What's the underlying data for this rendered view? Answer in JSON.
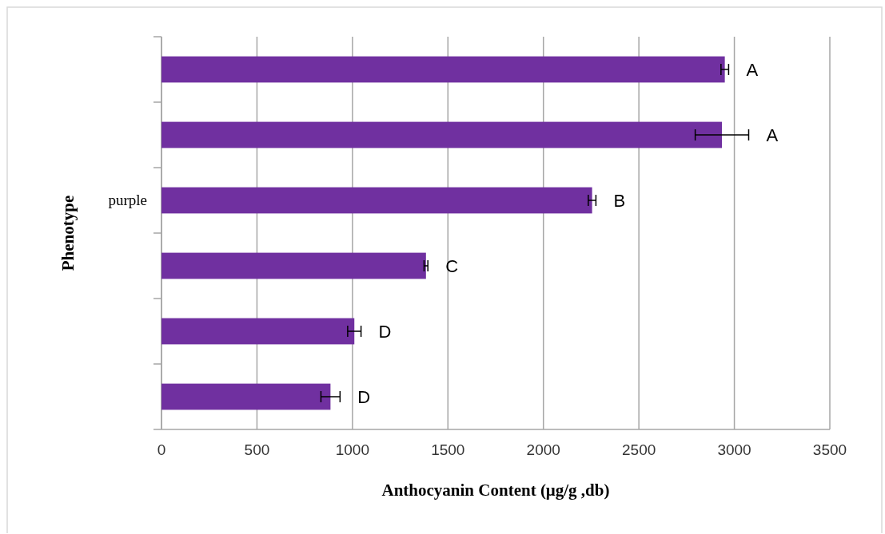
{
  "chart_data": {
    "type": "bar",
    "orientation": "horizontal",
    "xlabel": "Anthocyanin  Content (μg/g ,db)",
    "ylabel": "Phenotype",
    "categories": [
      null,
      null,
      "purple",
      null,
      null,
      null
    ],
    "values": [
      2950,
      2935,
      2255,
      1385,
      1010,
      885
    ],
    "errors": [
      20,
      140,
      20,
      10,
      35,
      50
    ],
    "value_labels": [
      "A",
      "A",
      "B",
      "C",
      "D",
      "D"
    ],
    "color": "#7030a0",
    "xlim": [
      0,
      3500
    ],
    "xticks": [
      0,
      500,
      1000,
      1500,
      2000,
      2500,
      3000,
      3500
    ],
    "grid": "x"
  }
}
